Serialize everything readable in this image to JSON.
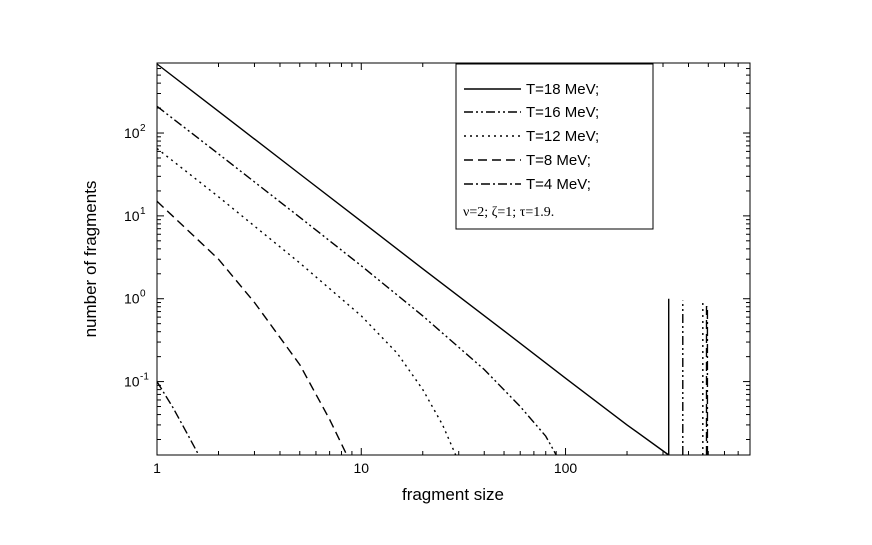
{
  "chart_data": {
    "type": "line",
    "title": "",
    "xlabel": "fragment size",
    "ylabel": "number of fragments",
    "x_scale": "log",
    "y_scale": "log",
    "xlim": [
      1,
      800
    ],
    "ylim": [
      0.013,
      700
    ],
    "grid": false,
    "legend_position": "top-right",
    "x_ticks": [
      {
        "value": 1,
        "label": "1"
      },
      {
        "value": 10,
        "label": "10"
      },
      {
        "value": 100,
        "label": "100"
      }
    ],
    "y_ticks": [
      {
        "value": 0.1,
        "base": "10",
        "exp": "-1"
      },
      {
        "value": 1,
        "base": "10",
        "exp": "0"
      },
      {
        "value": 10,
        "base": "10",
        "exp": "1"
      },
      {
        "value": 100,
        "base": "10",
        "exp": "2"
      }
    ],
    "legend_note": "ν=2; ζ=1; τ=1.9.",
    "series": [
      {
        "name": "T=18 MeV;",
        "dash": "solid",
        "x": [
          1,
          2,
          5,
          10,
          20,
          50,
          100,
          200,
          320
        ],
        "y": [
          680,
          183,
          32,
          8.6,
          2.3,
          0.41,
          0.11,
          0.03,
          0.013
        ],
        "spike_x": 320,
        "spike_y": 1.0
      },
      {
        "name": "T=16 MeV;",
        "dash": "dash-dot-dot",
        "x": [
          1,
          2,
          5,
          10,
          20,
          40,
          60,
          80,
          90
        ],
        "y": [
          210,
          56,
          9.6,
          2.5,
          0.62,
          0.14,
          0.05,
          0.022,
          0.013
        ],
        "spike_x": 375,
        "spike_y": 0.95
      },
      {
        "name": "T=12 MeV;",
        "dash": "dot",
        "x": [
          1,
          2,
          5,
          10,
          15,
          20,
          25,
          29
        ],
        "y": [
          65,
          17,
          2.7,
          0.62,
          0.22,
          0.08,
          0.03,
          0.013
        ],
        "spike_x": 470,
        "spike_y": 0.9
      },
      {
        "name": "T=8 MeV;",
        "dash": "dash",
        "x": [
          1,
          2,
          3,
          5,
          7,
          8.5
        ],
        "y": [
          15,
          3.0,
          0.9,
          0.16,
          0.035,
          0.013
        ],
        "spike_x": 490,
        "spike_y": 0.85
      },
      {
        "name": "T=4 MeV;",
        "dash": "dash-dot",
        "x": [
          1,
          1.2,
          1.4,
          1.6
        ],
        "y": [
          0.1,
          0.048,
          0.024,
          0.013
        ],
        "spike_x": 495,
        "spike_y": 0.8
      }
    ]
  }
}
